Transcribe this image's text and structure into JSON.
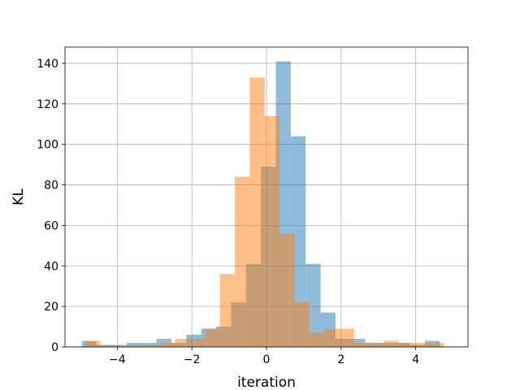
{
  "chart_data": {
    "type": "histogram",
    "title": "",
    "xlabel": "iteration",
    "ylabel": "KL",
    "xlim": [
      -5.4,
      5.4
    ],
    "ylim": [
      0,
      148
    ],
    "xticks": [
      -4,
      -2,
      0,
      2,
      4
    ],
    "xtick_labels": [
      "−4",
      "−2",
      "0",
      "2",
      "4"
    ],
    "yticks": [
      0,
      20,
      40,
      60,
      80,
      100,
      120,
      140
    ],
    "ytick_labels": [
      "0",
      "20",
      "40",
      "60",
      "80",
      "100",
      "120",
      "140"
    ],
    "grid": true,
    "legend": false,
    "series": [
      {
        "color": "#1f77b4",
        "opacity": 0.5,
        "bin_edges": [
          -4.95,
          -4.55,
          -4.15,
          -3.75,
          -3.35,
          -2.95,
          -2.55,
          -2.15,
          -1.75,
          -1.35,
          -0.95,
          -0.55,
          -0.15,
          0.25,
          0.65,
          1.05,
          1.45,
          1.85,
          2.25,
          2.65,
          3.05,
          3.45,
          3.85,
          4.25,
          4.65
        ],
        "counts": [
          3,
          1,
          1,
          2,
          2,
          4,
          2,
          6,
          9,
          10,
          22,
          41,
          89,
          141,
          104,
          41,
          17,
          4,
          4,
          2,
          2,
          2,
          1,
          3
        ]
      },
      {
        "color": "#ff7f0e",
        "opacity": 0.5,
        "bin_edges": [
          -4.85,
          -4.45,
          -4.05,
          -3.65,
          -3.25,
          -2.85,
          -2.45,
          -2.05,
          -1.65,
          -1.25,
          -0.85,
          -0.45,
          -0.05,
          0.35,
          0.75,
          1.15,
          1.55,
          1.95,
          2.35,
          2.75,
          3.15,
          3.55,
          3.95,
          4.35,
          4.75,
          4.9
        ],
        "counts": [
          3,
          1,
          0,
          1,
          1,
          2,
          4,
          4,
          9,
          36,
          84,
          133,
          114,
          56,
          22,
          7,
          9,
          9,
          2,
          2,
          3,
          2,
          2,
          2,
          0
        ]
      }
    ]
  }
}
